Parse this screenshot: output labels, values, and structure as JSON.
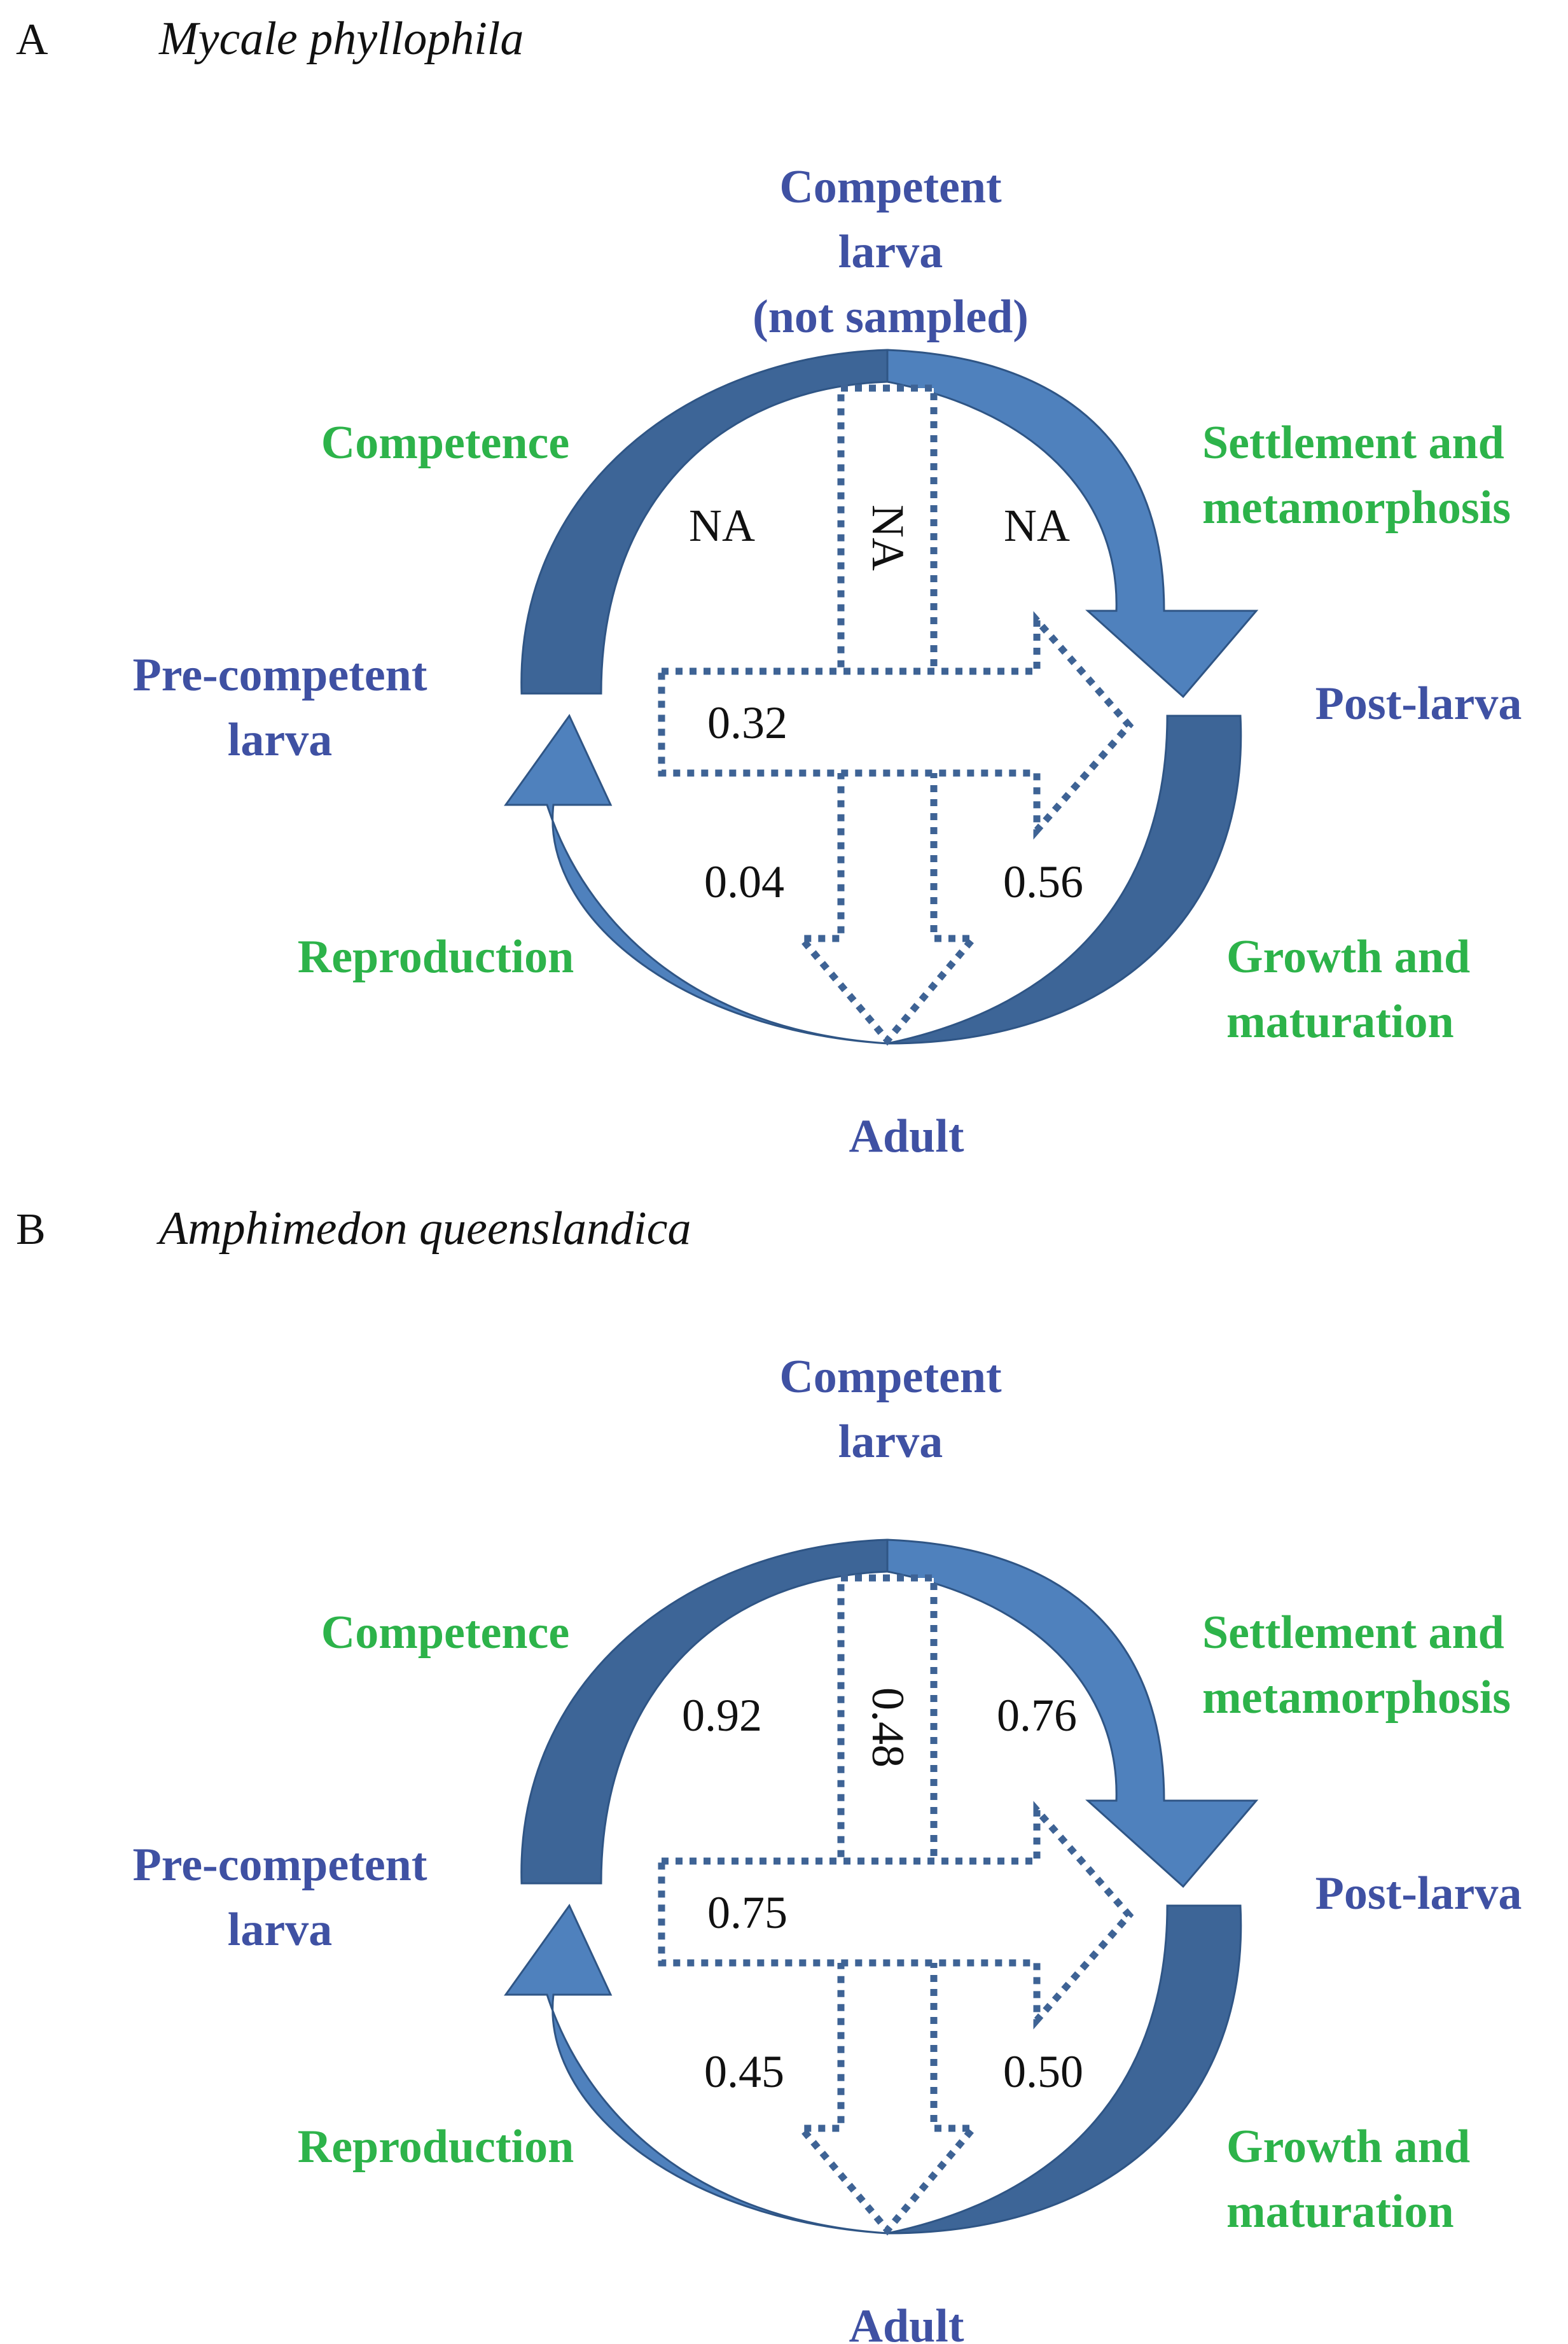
{
  "colors": {
    "stage": "#3f51a3",
    "process": "#2db34a",
    "arrow_dark": "#3d6597",
    "arrow_light": "#4f81bd",
    "dotted": "#3e6395"
  },
  "panels": [
    {
      "letter": "A",
      "species": "Mycale phyllophila",
      "stages": {
        "top": [
          "Competent",
          "larva",
          "(not sampled)"
        ],
        "left": [
          "Pre-competent",
          "larva"
        ],
        "right": [
          "Post-larva"
        ],
        "bottom": [
          "Adult"
        ]
      },
      "processes": {
        "top_left": [
          "Competence"
        ],
        "top_right": [
          "Settlement and",
          "metamorphosis"
        ],
        "bottom_left": [
          "Reproduction"
        ],
        "bottom_right": [
          "Growth and",
          "maturation"
        ]
      },
      "values": {
        "top_left": "NA",
        "vertical": "NA",
        "top_right": "NA",
        "horizontal": "0.32",
        "bottom_left": "0.04",
        "bottom_right": "0.56"
      }
    },
    {
      "letter": "B",
      "species": "Amphimedon queenslandica",
      "stages": {
        "top": [
          "Competent",
          "larva"
        ],
        "left": [
          "Pre-competent",
          "larva"
        ],
        "right": [
          "Post-larva"
        ],
        "bottom": [
          "Adult"
        ]
      },
      "processes": {
        "top_left": [
          "Competence"
        ],
        "top_right": [
          "Settlement and",
          "metamorphosis"
        ],
        "bottom_left": [
          "Reproduction"
        ],
        "bottom_right": [
          "Growth and",
          "maturation"
        ]
      },
      "values": {
        "top_left": "0.92",
        "vertical": "0.48",
        "top_right": "0.76",
        "horizontal": "0.75",
        "bottom_left": "0.45",
        "bottom_right": "0.50"
      }
    }
  ]
}
